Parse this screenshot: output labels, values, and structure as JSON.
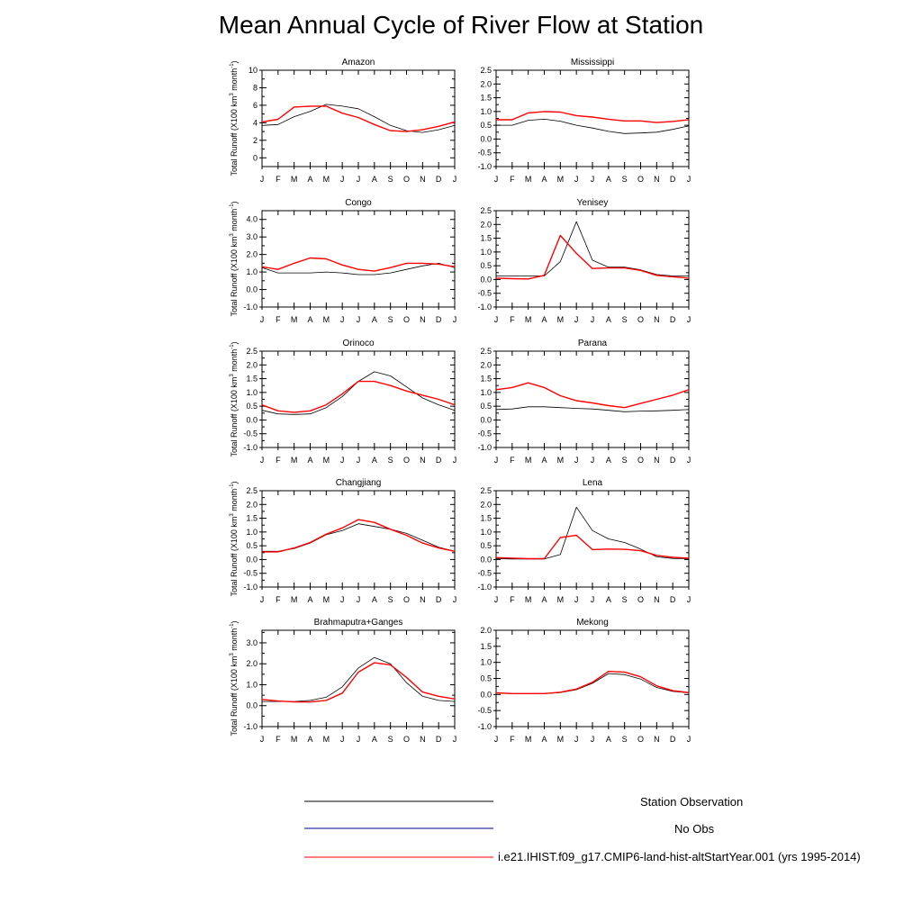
{
  "title": "Mean Annual Cycle of River Flow at Station",
  "y_axis_label": "Total Runoff (X100 km",
  "y_axis_label_sup1": "3",
  "y_axis_label_mid": " month",
  "y_axis_label_sup2": "-1",
  "y_axis_label_end": ")",
  "month_ticks": [
    "J",
    "F",
    "M",
    "A",
    "M",
    "J",
    "J",
    "A",
    "S",
    "O",
    "N",
    "D",
    "J"
  ],
  "legend": {
    "observation": "Station Observation",
    "no_obs": "No Obs",
    "model": "i.e21.IHIST.f09_g17.CMIP6-land-hist-altStartYear.001 (yrs 1995-2014)"
  },
  "colors": {
    "observation": "#000000",
    "no_obs": "#00008b",
    "model": "#ff0000"
  },
  "chart_data": [
    {
      "type": "line",
      "title": "Amazon",
      "ylim": [
        -1,
        10
      ],
      "yticks": [
        0,
        2,
        4,
        6,
        8,
        10
      ],
      "x": [
        "J",
        "F",
        "M",
        "A",
        "M",
        "J",
        "J",
        "A",
        "S",
        "O",
        "N",
        "D",
        "J"
      ],
      "series": [
        {
          "name": "Station Observation",
          "values": [
            3.7,
            3.8,
            4.7,
            5.3,
            6.1,
            5.9,
            5.6,
            4.7,
            3.7,
            3.1,
            2.9,
            3.2,
            3.7
          ]
        },
        {
          "name": "i.e21.IHIST.f09_g17.CMIP6-land-hist-altStartYear.001 (yrs 1995-2014)",
          "values": [
            4.1,
            4.4,
            5.8,
            5.9,
            5.9,
            5.1,
            4.6,
            3.8,
            3.1,
            3.0,
            3.2,
            3.6,
            4.1
          ]
        }
      ]
    },
    {
      "type": "line",
      "title": "Mississippi",
      "ylim": [
        -1,
        2.5
      ],
      "yticks": [
        -1.0,
        -0.5,
        0.0,
        0.5,
        1.0,
        1.5,
        2.0,
        2.5
      ],
      "x": [
        "J",
        "F",
        "M",
        "A",
        "M",
        "J",
        "J",
        "A",
        "S",
        "O",
        "N",
        "D",
        "J"
      ],
      "series": [
        {
          "name": "Station Observation",
          "values": [
            0.5,
            0.5,
            0.68,
            0.72,
            0.65,
            0.5,
            0.4,
            0.28,
            0.2,
            0.22,
            0.25,
            0.35,
            0.48
          ]
        },
        {
          "name": "i.e21.IHIST.f09_g17.CMIP6-land-hist-altStartYear.001 (yrs 1995-2014)",
          "values": [
            0.7,
            0.7,
            0.95,
            1.0,
            0.98,
            0.85,
            0.8,
            0.72,
            0.66,
            0.66,
            0.6,
            0.64,
            0.7
          ]
        }
      ]
    },
    {
      "type": "line",
      "title": "Congo",
      "ylim": [
        -1,
        4.5
      ],
      "yticks": [
        -1.0,
        0.0,
        1.0,
        2.0,
        3.0,
        4.0
      ],
      "x": [
        "J",
        "F",
        "M",
        "A",
        "M",
        "J",
        "J",
        "A",
        "S",
        "O",
        "N",
        "D",
        "J"
      ],
      "series": [
        {
          "name": "Station Observation",
          "values": [
            1.25,
            0.95,
            0.95,
            0.95,
            1.0,
            0.95,
            0.85,
            0.85,
            0.95,
            1.15,
            1.35,
            1.5,
            1.25
          ]
        },
        {
          "name": "i.e21.IHIST.f09_g17.CMIP6-land-hist-altStartYear.001 (yrs 1995-2014)",
          "values": [
            1.3,
            1.15,
            1.5,
            1.8,
            1.75,
            1.4,
            1.15,
            1.05,
            1.25,
            1.5,
            1.5,
            1.45,
            1.3
          ]
        }
      ]
    },
    {
      "type": "line",
      "title": "Yenisey",
      "ylim": [
        -1,
        2.5
      ],
      "yticks": [
        -1.0,
        -0.5,
        0.0,
        0.5,
        1.0,
        1.5,
        2.0,
        2.5
      ],
      "x": [
        "J",
        "F",
        "M",
        "A",
        "M",
        "J",
        "J",
        "A",
        "S",
        "O",
        "N",
        "D",
        "J"
      ],
      "series": [
        {
          "name": "Station Observation",
          "values": [
            0.13,
            0.13,
            0.13,
            0.13,
            0.65,
            2.1,
            0.7,
            0.45,
            0.45,
            0.35,
            0.18,
            0.13,
            0.13
          ]
        },
        {
          "name": "i.e21.IHIST.f09_g17.CMIP6-land-hist-altStartYear.001 (yrs 1995-2014)",
          "values": [
            0.05,
            0.03,
            0.02,
            0.15,
            1.6,
            0.95,
            0.4,
            0.42,
            0.42,
            0.33,
            0.15,
            0.1,
            0.05
          ]
        }
      ]
    },
    {
      "type": "line",
      "title": "Orinoco",
      "ylim": [
        -1,
        2.5
      ],
      "yticks": [
        -1.0,
        -0.5,
        0.0,
        0.5,
        1.0,
        1.5,
        2.0,
        2.5
      ],
      "x": [
        "J",
        "F",
        "M",
        "A",
        "M",
        "J",
        "J",
        "A",
        "S",
        "O",
        "N",
        "D",
        "J"
      ],
      "series": [
        {
          "name": "Station Observation",
          "values": [
            0.35,
            0.22,
            0.2,
            0.22,
            0.45,
            0.85,
            1.4,
            1.75,
            1.6,
            1.2,
            0.8,
            0.55,
            0.35
          ]
        },
        {
          "name": "i.e21.IHIST.f09_g17.CMIP6-land-hist-altStartYear.001 (yrs 1995-2014)",
          "values": [
            0.55,
            0.33,
            0.28,
            0.33,
            0.55,
            0.95,
            1.4,
            1.4,
            1.25,
            1.05,
            0.9,
            0.75,
            0.55
          ]
        }
      ]
    },
    {
      "type": "line",
      "title": "Parana",
      "ylim": [
        -1,
        2.5
      ],
      "yticks": [
        -1.0,
        -0.5,
        0.0,
        0.5,
        1.0,
        1.5,
        2.0,
        2.5
      ],
      "x": [
        "J",
        "F",
        "M",
        "A",
        "M",
        "J",
        "J",
        "A",
        "S",
        "O",
        "N",
        "D",
        "J"
      ],
      "series": [
        {
          "name": "Station Observation",
          "values": [
            0.38,
            0.4,
            0.48,
            0.48,
            0.45,
            0.42,
            0.4,
            0.35,
            0.3,
            0.32,
            0.33,
            0.35,
            0.38
          ]
        },
        {
          "name": "i.e21.IHIST.f09_g17.CMIP6-land-hist-altStartYear.001 (yrs 1995-2014)",
          "values": [
            1.1,
            1.18,
            1.35,
            1.18,
            0.88,
            0.7,
            0.62,
            0.52,
            0.45,
            0.6,
            0.75,
            0.9,
            1.1
          ]
        }
      ]
    },
    {
      "type": "line",
      "title": "Changjiang",
      "ylim": [
        -1,
        2.5
      ],
      "yticks": [
        -1.0,
        -0.5,
        0.0,
        0.5,
        1.0,
        1.5,
        2.0,
        2.5
      ],
      "x": [
        "J",
        "F",
        "M",
        "A",
        "M",
        "J",
        "J",
        "A",
        "S",
        "O",
        "N",
        "D",
        "J"
      ],
      "series": [
        {
          "name": "Station Observation",
          "values": [
            0.3,
            0.3,
            0.4,
            0.6,
            0.9,
            1.05,
            1.3,
            1.2,
            1.1,
            0.95,
            0.7,
            0.45,
            0.3
          ]
        },
        {
          "name": "i.e21.IHIST.f09_g17.CMIP6-land-hist-altStartYear.001 (yrs 1995-2014)",
          "values": [
            0.28,
            0.28,
            0.42,
            0.62,
            0.92,
            1.15,
            1.45,
            1.35,
            1.1,
            0.88,
            0.6,
            0.42,
            0.3
          ]
        }
      ]
    },
    {
      "type": "line",
      "title": "Lena",
      "ylim": [
        -1,
        2.5
      ],
      "yticks": [
        -1.0,
        -0.5,
        0.0,
        0.5,
        1.0,
        1.5,
        2.0,
        2.5
      ],
      "x": [
        "J",
        "F",
        "M",
        "A",
        "M",
        "J",
        "J",
        "A",
        "S",
        "O",
        "N",
        "D",
        "J"
      ],
      "series": [
        {
          "name": "Station Observation",
          "values": [
            0.03,
            0.02,
            0.02,
            0.02,
            0.18,
            1.9,
            1.05,
            0.75,
            0.62,
            0.38,
            0.1,
            0.04,
            0.03
          ]
        },
        {
          "name": "i.e21.IHIST.f09_g17.CMIP6-land-hist-altStartYear.001 (yrs 1995-2014)",
          "values": [
            0.07,
            0.05,
            0.03,
            0.03,
            0.8,
            0.88,
            0.36,
            0.38,
            0.37,
            0.32,
            0.15,
            0.08,
            0.05
          ]
        }
      ]
    },
    {
      "type": "line",
      "title": "Brahmaputra+Ganges",
      "ylim": [
        -1,
        3.6
      ],
      "yticks": [
        -1.0,
        0.0,
        1.0,
        2.0,
        3.0
      ],
      "x": [
        "J",
        "F",
        "M",
        "A",
        "M",
        "J",
        "J",
        "A",
        "S",
        "O",
        "N",
        "D",
        "J"
      ],
      "series": [
        {
          "name": "Station Observation",
          "values": [
            0.2,
            0.2,
            0.2,
            0.25,
            0.4,
            0.9,
            1.8,
            2.3,
            2.0,
            1.1,
            0.45,
            0.25,
            0.2
          ]
        },
        {
          "name": "i.e21.IHIST.f09_g17.CMIP6-land-hist-altStartYear.001 (yrs 1995-2014)",
          "values": [
            0.3,
            0.22,
            0.18,
            0.18,
            0.25,
            0.6,
            1.6,
            2.05,
            1.95,
            1.35,
            0.65,
            0.45,
            0.32
          ]
        }
      ]
    },
    {
      "type": "line",
      "title": "Mekong",
      "ylim": [
        -1,
        2.0
      ],
      "yticks": [
        -1.0,
        -0.5,
        0.0,
        0.5,
        1.0,
        1.5,
        2.0
      ],
      "x": [
        "J",
        "F",
        "M",
        "A",
        "M",
        "J",
        "J",
        "A",
        "S",
        "O",
        "N",
        "D",
        "J"
      ],
      "series": [
        {
          "name": "Station Observation",
          "values": [
            0.05,
            0.03,
            0.02,
            0.03,
            0.06,
            0.15,
            0.35,
            0.65,
            0.62,
            0.48,
            0.22,
            0.1,
            0.05
          ]
        },
        {
          "name": "i.e21.IHIST.f09_g17.CMIP6-land-hist-altStartYear.001 (yrs 1995-2014)",
          "values": [
            0.05,
            0.03,
            0.03,
            0.03,
            0.07,
            0.17,
            0.38,
            0.72,
            0.7,
            0.55,
            0.27,
            0.12,
            0.06
          ]
        }
      ]
    }
  ]
}
